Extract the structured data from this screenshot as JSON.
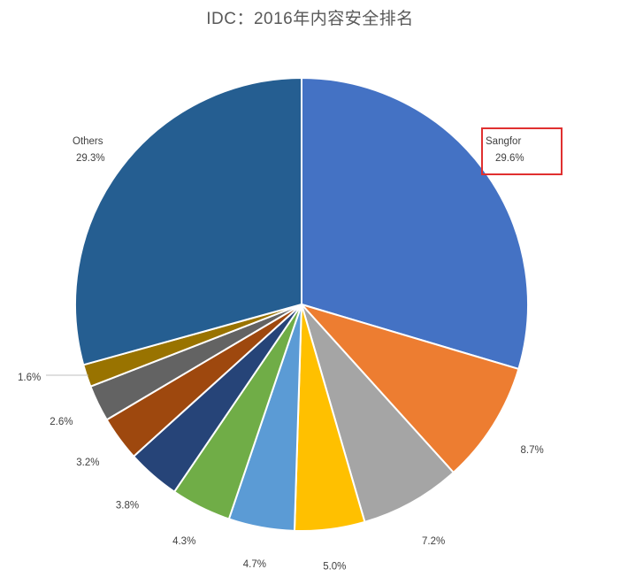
{
  "chart_data": {
    "type": "pie",
    "title": "IDC：2016年内容安全排名",
    "slices": [
      {
        "name": "Sangfor",
        "value": 29.6,
        "label": "29.6%",
        "color": "#4472C4"
      },
      {
        "name": "",
        "value": 8.7,
        "label": "8.7%",
        "color": "#ED7D31"
      },
      {
        "name": "",
        "value": 7.2,
        "label": "7.2%",
        "color": "#A5A5A5"
      },
      {
        "name": "",
        "value": 5.0,
        "label": "5.0%",
        "color": "#FFC000"
      },
      {
        "name": "",
        "value": 4.7,
        "label": "4.7%",
        "color": "#5B9BD5"
      },
      {
        "name": "",
        "value": 4.3,
        "label": "4.3%",
        "color": "#70AD47"
      },
      {
        "name": "",
        "value": 3.8,
        "label": "3.8%",
        "color": "#264478"
      },
      {
        "name": "",
        "value": 3.2,
        "label": "3.2%",
        "color": "#9E480E"
      },
      {
        "name": "",
        "value": 2.6,
        "label": "2.6%",
        "color": "#636363"
      },
      {
        "name": "",
        "value": 1.6,
        "label": "1.6%",
        "color": "#997300"
      },
      {
        "name": "Others",
        "value": 29.3,
        "label": "29.3%",
        "color": "#255E91"
      }
    ],
    "highlight": "Sangfor",
    "highlight_color": "#E03030",
    "start_angle": "12 o'clock",
    "direction": "clockwise"
  }
}
